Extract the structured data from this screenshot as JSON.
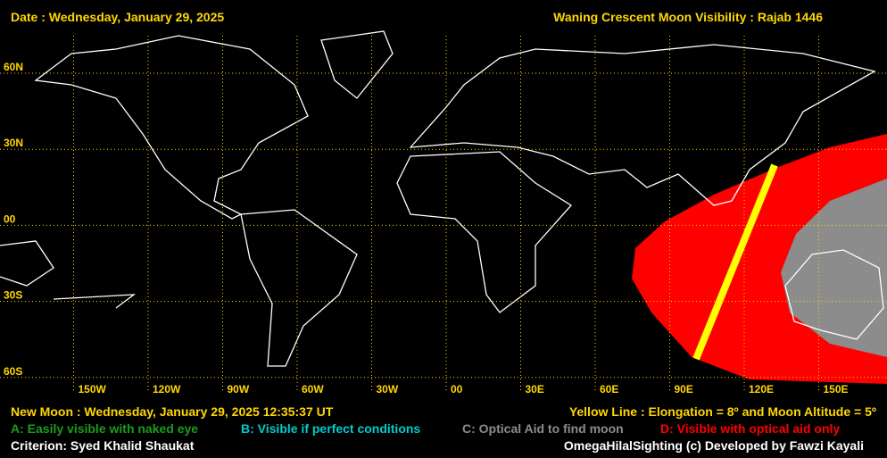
{
  "header": {
    "date": "Date : Wednesday, January 29, 2025",
    "title": "Waning Crescent Moon Visibility : Rajab 1446"
  },
  "grid": {
    "lat_labels": [
      "60N",
      "30N",
      "00",
      "30S",
      "60S"
    ],
    "lon_labels": [
      "150W",
      "120W",
      "90W",
      "60W",
      "30W",
      "00",
      "30E",
      "60E",
      "90E",
      "120E",
      "150E"
    ]
  },
  "footer": {
    "new_moon": "New Moon : Wednesday, January 29, 2025  12:35:37  UT",
    "yellow_line": "Yellow Line : Elongation = 8º  and Moon Altitude = 5º",
    "legend": [
      {
        "text": "A: Easily visible with naked eye",
        "color": "#1a9e1a"
      },
      {
        "text": "B: Visible if perfect conditions",
        "color": "#00cccc"
      },
      {
        "text": "C: Optical Aid to find moon",
        "color": "#8c8c8c"
      },
      {
        "text": "D: Visible with optical aid only",
        "color": "#ff0000"
      }
    ],
    "criterion": "Criterion: Syed Khalid Shaukat",
    "credit": "OmegaHilalSighting  (c)  Developed by Fawzi Kayali"
  }
}
